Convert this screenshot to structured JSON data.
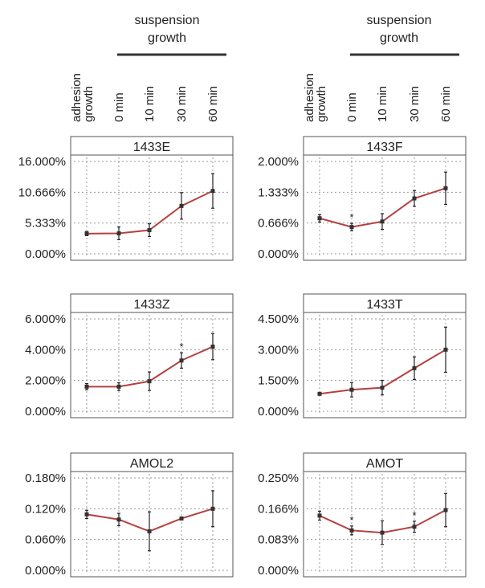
{
  "header": {
    "group_label_line1": "suspension",
    "group_label_line2": "growth",
    "conditions": [
      "adhesion growth",
      "0 min",
      "10 min",
      "30 min",
      "60 min"
    ]
  },
  "colors": {
    "line": "#b5413f",
    "error": "#222222",
    "grid": "#9a9a9a",
    "frame": "#555555"
  },
  "chart_data": [
    {
      "type": "line",
      "title": "1433E",
      "categories": [
        "adhesion growth",
        "0 min",
        "10 min",
        "30 min",
        "60 min"
      ],
      "values": [
        3.5,
        3.55,
        4.1,
        8.3,
        10.9
      ],
      "error": [
        0.35,
        1.1,
        1.1,
        2.3,
        3.0
      ],
      "sig": [
        false,
        false,
        false,
        false,
        false
      ],
      "yticks": [
        "0.000%",
        "5.333%",
        "10.666%",
        "16.000%"
      ],
      "ylim": [
        0,
        16
      ],
      "grid": true
    },
    {
      "type": "line",
      "title": "1433F",
      "categories": [
        "adhesion growth",
        "0 min",
        "10 min",
        "30 min",
        "60 min"
      ],
      "values": [
        0.77,
        0.58,
        0.7,
        1.2,
        1.42
      ],
      "error": [
        0.08,
        0.08,
        0.17,
        0.17,
        0.35
      ],
      "sig": [
        false,
        true,
        false,
        false,
        false
      ],
      "yticks": [
        "0.000%",
        "0.666%",
        "1.333%",
        "2.000%"
      ],
      "ylim": [
        0,
        2
      ],
      "grid": true
    },
    {
      "type": "line",
      "title": "1433Z",
      "categories": [
        "adhesion growth",
        "0 min",
        "10 min",
        "30 min",
        "60 min"
      ],
      "values": [
        1.6,
        1.6,
        1.95,
        3.3,
        4.2
      ],
      "error": [
        0.2,
        0.25,
        0.6,
        0.5,
        0.85
      ],
      "sig": [
        false,
        false,
        false,
        true,
        false
      ],
      "yticks": [
        "0.000%",
        "2.000%",
        "4.000%",
        "6.000%"
      ],
      "ylim": [
        0,
        6
      ],
      "grid": true
    },
    {
      "type": "line",
      "title": "1433T",
      "categories": [
        "adhesion growth",
        "0 min",
        "10 min",
        "30 min",
        "60 min"
      ],
      "values": [
        0.85,
        1.05,
        1.15,
        2.1,
        3.0
      ],
      "error": [
        0.0,
        0.35,
        0.35,
        0.55,
        1.1
      ],
      "sig": [
        false,
        false,
        false,
        false,
        false
      ],
      "yticks": [
        "0.000%",
        "1.500%",
        "3.000%",
        "4.500%"
      ],
      "ylim": [
        0,
        4.5
      ],
      "grid": true
    },
    {
      "type": "line",
      "title": "AMOL2",
      "categories": [
        "adhesion growth",
        "0 min",
        "10 min",
        "30 min",
        "60 min"
      ],
      "values": [
        0.109,
        0.099,
        0.076,
        0.101,
        0.12
      ],
      "error": [
        0.008,
        0.012,
        0.038,
        0.003,
        0.035
      ],
      "sig": [
        false,
        false,
        false,
        false,
        false
      ],
      "yticks": [
        "0.000%",
        "0.060%",
        "0.120%",
        "0.180%"
      ],
      "ylim": [
        0,
        0.18
      ],
      "grid": true
    },
    {
      "type": "line",
      "title": "AMOT",
      "categories": [
        "adhesion growth",
        "0 min",
        "10 min",
        "30 min",
        "60 min"
      ],
      "values": [
        0.148,
        0.108,
        0.102,
        0.118,
        0.163
      ],
      "error": [
        0.012,
        0.012,
        0.032,
        0.015,
        0.045
      ],
      "sig": [
        false,
        true,
        false,
        true,
        false
      ],
      "yticks": [
        "0.000%",
        "0.083%",
        "0.166%",
        "0.250%"
      ],
      "ylim": [
        0,
        0.25
      ],
      "grid": true
    }
  ]
}
